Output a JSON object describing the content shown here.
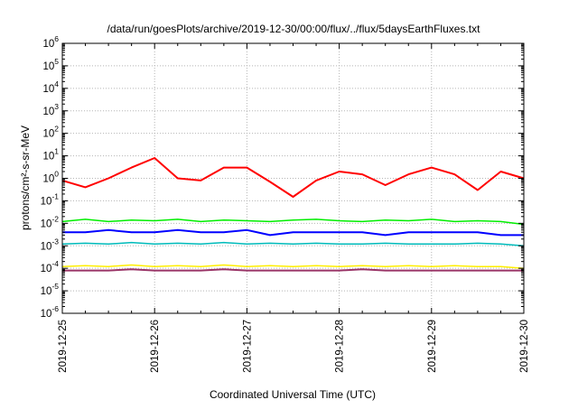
{
  "chart_data": {
    "type": "line",
    "title": "/data/run/goesPlots/archive/2019-12-30/00:00/flux/../flux/5daysEarthFluxes.txt",
    "xlabel": "Coordinated Universal Time (UTC)",
    "ylabel": "protons/cm²-s-sr-MeV",
    "xscale": "time",
    "yscale": "log",
    "xlim": [
      "2019-12-25",
      "2019-12-30"
    ],
    "ylim": [
      1e-06,
      1000000.0
    ],
    "x_ticks": [
      "2019-12-25",
      "2019-12-26",
      "2019-12-27",
      "2019-12-28",
      "2019-12-29",
      "2019-12-30"
    ],
    "y_ticks": [
      {
        "mant": "10",
        "exp": "-6"
      },
      {
        "mant": "10",
        "exp": "-5"
      },
      {
        "mant": "10",
        "exp": "-4"
      },
      {
        "mant": "10",
        "exp": "-3"
      },
      {
        "mant": "10",
        "exp": "-2"
      },
      {
        "mant": "10",
        "exp": "-1"
      },
      {
        "mant": "10",
        "exp": "0"
      },
      {
        "mant": "10",
        "exp": "1"
      },
      {
        "mant": "10",
        "exp": "2"
      },
      {
        "mant": "10",
        "exp": "3"
      },
      {
        "mant": "10",
        "exp": "4"
      },
      {
        "mant": "10",
        "exp": "5"
      },
      {
        "mant": "10",
        "exp": "6"
      }
    ],
    "grid": true,
    "legend": "none",
    "x_days": [
      0,
      0.25,
      0.5,
      0.75,
      1.0,
      1.25,
      1.5,
      1.75,
      2.0,
      2.25,
      2.5,
      2.75,
      3.0,
      3.25,
      3.5,
      3.75,
      4.0,
      4.25,
      4.5,
      4.75,
      5.0
    ],
    "series": [
      {
        "color": "#ff0000",
        "width": 2,
        "values": [
          0.8,
          0.4,
          1.0,
          3.0,
          8.0,
          1.0,
          0.8,
          3.0,
          3.0,
          0.7,
          0.15,
          0.8,
          2.0,
          1.5,
          0.5,
          1.5,
          3.0,
          1.5,
          0.3,
          2.0,
          1.0
        ]
      },
      {
        "color": "#00ee00",
        "width": 1.5,
        "values": [
          0.012,
          0.015,
          0.012,
          0.014,
          0.013,
          0.015,
          0.012,
          0.014,
          0.013,
          0.012,
          0.014,
          0.015,
          0.013,
          0.012,
          0.014,
          0.013,
          0.015,
          0.012,
          0.013,
          0.012,
          0.009
        ]
      },
      {
        "color": "#0000ff",
        "width": 2,
        "values": [
          0.004,
          0.004,
          0.005,
          0.004,
          0.004,
          0.005,
          0.004,
          0.004,
          0.005,
          0.003,
          0.004,
          0.004,
          0.004,
          0.004,
          0.003,
          0.004,
          0.004,
          0.004,
          0.004,
          0.003,
          0.003
        ]
      },
      {
        "color": "#00bbbb",
        "width": 1.5,
        "values": [
          0.0012,
          0.0013,
          0.0012,
          0.0014,
          0.0012,
          0.0013,
          0.0012,
          0.0014,
          0.0012,
          0.0013,
          0.0012,
          0.0013,
          0.0012,
          0.0012,
          0.0013,
          0.0012,
          0.0012,
          0.0012,
          0.0013,
          0.0012,
          0.001
        ]
      },
      {
        "color": "#ffee00",
        "width": 1.5,
        "values": [
          0.00012,
          0.00013,
          0.00012,
          0.00014,
          0.00012,
          0.00013,
          0.00012,
          0.00014,
          0.00012,
          0.00013,
          0.00012,
          0.00013,
          0.00012,
          0.00013,
          0.00012,
          0.00013,
          0.00012,
          0.00013,
          0.00012,
          0.00012,
          0.0001
        ]
      },
      {
        "color": "#993366",
        "width": 2,
        "values": [
          8e-05,
          8e-05,
          8e-05,
          9e-05,
          8e-05,
          8e-05,
          8e-05,
          9e-05,
          8e-05,
          8e-05,
          8e-05,
          8e-05,
          8e-05,
          9e-05,
          8e-05,
          8e-05,
          8e-05,
          8e-05,
          8e-05,
          8e-05,
          8e-05
        ]
      }
    ]
  }
}
